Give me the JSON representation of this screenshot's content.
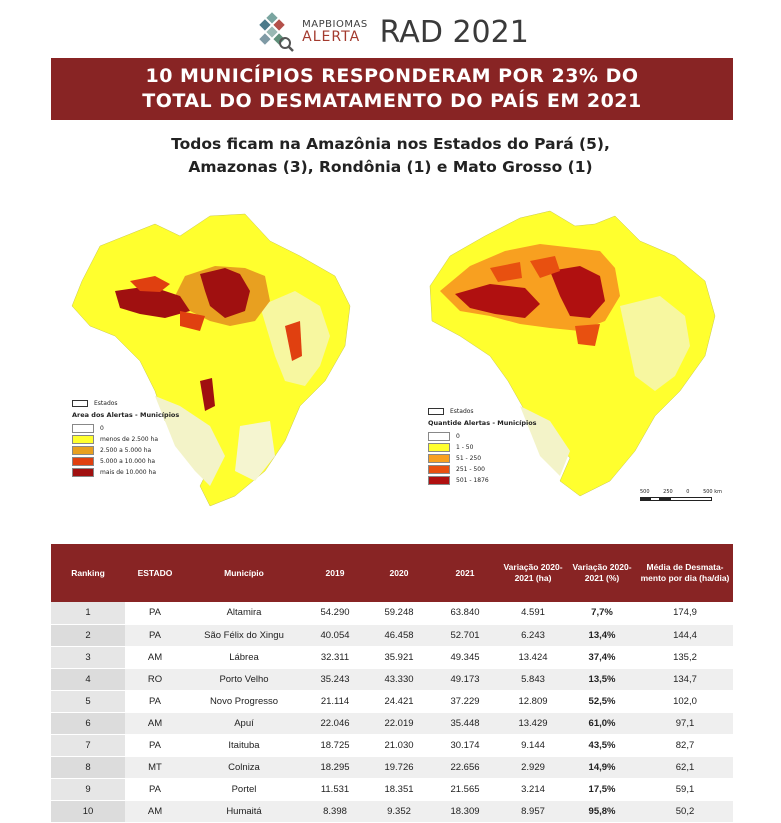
{
  "header": {
    "logo_top": "MAPBIOMAS",
    "logo_bottom": "ALERTA",
    "report_title": "RAD 2021"
  },
  "banner": {
    "line1": "10 MUNICÍPIOS RESPONDERAM POR 23% DO",
    "line2": "TOTAL DO DESMATAMENTO DO PAÍS EM 2021"
  },
  "subtitle": {
    "line1": "Todos ficam na Amazônia nos Estados do Pará (5),",
    "line2": "Amazonas (3), Rondônia (1) e Mato Grosso (1)"
  },
  "map_left": {
    "states_label": "Estados",
    "legend_title": "Area dos Alertas - Municípios",
    "legend": [
      {
        "label": "0",
        "color": "#ffffff"
      },
      {
        "label": "menos de 2.500 ha",
        "color": "#ffff2e"
      },
      {
        "label": "2.500 a 5.000 ha",
        "color": "#e8a020"
      },
      {
        "label": "5.000 a 10.000 ha",
        "color": "#e04010"
      },
      {
        "label": "mais de 10.000 ha",
        "color": "#a01010"
      }
    ]
  },
  "map_right": {
    "states_label": "Estados",
    "legend_title": "Quantide Alertas - Municípios",
    "legend": [
      {
        "label": "0",
        "color": "#ffffff"
      },
      {
        "label": "1 - 50",
        "color": "#ffff2e"
      },
      {
        "label": "51 - 250",
        "color": "#f8a020"
      },
      {
        "label": "251 - 500",
        "color": "#e85010"
      },
      {
        "label": "501 - 1876",
        "color": "#b01010"
      }
    ],
    "scale_labels": [
      "500",
      "250",
      "0",
      "500 km"
    ]
  },
  "table": {
    "headers": [
      "Ranking",
      "ESTADO",
      "Município",
      "2019",
      "2020",
      "2021",
      "Variação 2020-2021 (ha)",
      "Variação 2020-2021 (%)",
      "Média de Desmata-mento por dia (ha/dia)"
    ],
    "rows": [
      [
        "1",
        "PA",
        "Altamira",
        "54.290",
        "59.248",
        "63.840",
        "4.591",
        "7,7%",
        "174,9"
      ],
      [
        "2",
        "PA",
        "São Félix do Xingu",
        "40.054",
        "46.458",
        "52.701",
        "6.243",
        "13,4%",
        "144,4"
      ],
      [
        "3",
        "AM",
        "Lábrea",
        "32.311",
        "35.921",
        "49.345",
        "13.424",
        "37,4%",
        "135,2"
      ],
      [
        "4",
        "RO",
        "Porto Velho",
        "35.243",
        "43.330",
        "49.173",
        "5.843",
        "13,5%",
        "134,7"
      ],
      [
        "5",
        "PA",
        "Novo Progresso",
        "21.114",
        "24.421",
        "37.229",
        "12.809",
        "52,5%",
        "102,0"
      ],
      [
        "6",
        "AM",
        "Apuí",
        "22.046",
        "22.019",
        "35.448",
        "13.429",
        "61,0%",
        "97,1"
      ],
      [
        "7",
        "PA",
        "Itaituba",
        "18.725",
        "21.030",
        "30.174",
        "9.144",
        "43,5%",
        "82,7"
      ],
      [
        "8",
        "MT",
        "Colniza",
        "18.295",
        "19.726",
        "22.656",
        "2.929",
        "14,9%",
        "62,1"
      ],
      [
        "9",
        "PA",
        "Portel",
        "11.531",
        "18.351",
        "21.565",
        "3.214",
        "17,5%",
        "59,1"
      ],
      [
        "10",
        "AM",
        "Humaitá",
        "8.398",
        "9.352",
        "18.309",
        "8.957",
        "95,8%",
        "50,2"
      ]
    ]
  }
}
